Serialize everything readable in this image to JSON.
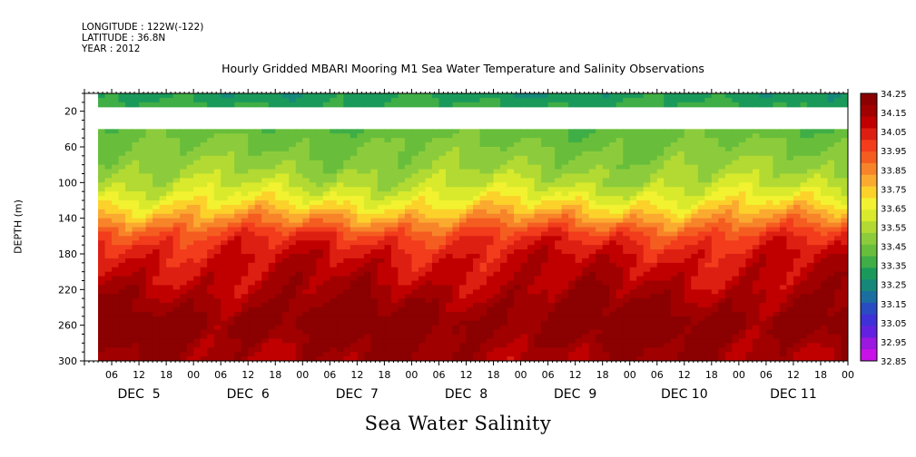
{
  "header": {
    "longitude": "LONGITUDE : 122W(-122)",
    "latitude": "LATITUDE : 36.8N",
    "year": "YEAR : 2012"
  },
  "chart_data": {
    "type": "heatmap",
    "title": "Hourly Gridded MBARI Mooring M1 Sea Water Temperature and Salinity Observations",
    "subtitle_bottom": "Sea Water Salinity",
    "ylabel": "DEPTH (m)",
    "ylim": [
      300,
      0
    ],
    "y_ticks": [
      20,
      60,
      100,
      140,
      180,
      220,
      260,
      300
    ],
    "x_hour_labels": [
      "06",
      "12",
      "18",
      "00",
      "06",
      "12",
      "18",
      "00",
      "06",
      "12",
      "18",
      "00",
      "06",
      "12",
      "18",
      "00",
      "06",
      "12",
      "18",
      "00",
      "06",
      "12",
      "18",
      "00",
      "06",
      "12",
      "18",
      "00"
    ],
    "x_day_labels": [
      "DEC  5",
      "DEC  6",
      "DEC  7",
      "DEC  8",
      "DEC  9",
      "DEC 10",
      "DEC 11"
    ],
    "x_range_hours": [
      0,
      168
    ],
    "data_start_hours": 3,
    "missing_depth_band": [
      15,
      40
    ],
    "colorbar": {
      "levels": [
        "34.25",
        "34.15",
        "34.05",
        "33.95",
        "33.85",
        "33.75",
        "33.65",
        "33.55",
        "33.45",
        "33.35",
        "33.25",
        "33.15",
        "33.05",
        "32.95",
        "32.85"
      ],
      "colors": [
        "#8b0000",
        "#a00000",
        "#c00000",
        "#dd1f12",
        "#f23c1c",
        "#f55d20",
        "#f8842a",
        "#fbaa30",
        "#fcd22a",
        "#f2f230",
        "#d9ea2c",
        "#b2da32",
        "#8ccc3c",
        "#68be3a",
        "#3fae46",
        "#1a9a5a",
        "#16887a",
        "#1b6ea0",
        "#2a4cc2",
        "#4030d8",
        "#6420e0",
        "#9a18e0",
        "#c812e8"
      ]
    },
    "profile": [
      {
        "depth": 0,
        "value": 33.3
      },
      {
        "depth": 40,
        "value": 33.42
      },
      {
        "depth": 60,
        "value": 33.46
      },
      {
        "depth": 80,
        "value": 33.5
      },
      {
        "depth": 100,
        "value": 33.56
      },
      {
        "depth": 115,
        "value": 33.64
      },
      {
        "depth": 130,
        "value": 33.74
      },
      {
        "depth": 145,
        "value": 33.86
      },
      {
        "depth": 160,
        "value": 33.98
      },
      {
        "depth": 180,
        "value": 34.06
      },
      {
        "depth": 200,
        "value": 34.1
      },
      {
        "depth": 220,
        "value": 34.14
      },
      {
        "depth": 240,
        "value": 34.19
      },
      {
        "depth": 255,
        "value": 34.24
      },
      {
        "depth": 270,
        "value": 34.22
      },
      {
        "depth": 285,
        "value": 34.18
      },
      {
        "depth": 300,
        "value": 34.16
      }
    ]
  }
}
